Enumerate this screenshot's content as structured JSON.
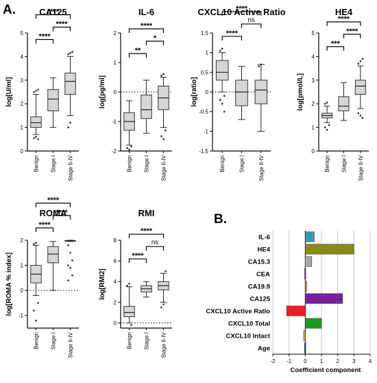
{
  "labels": {
    "panel_a": "A.",
    "panel_b": "B."
  },
  "chart_data": [
    {
      "type": "box",
      "title": "CA125",
      "ylabel": "log[U/ml]",
      "ylim": [
        0,
        5
      ],
      "yticks": [
        0,
        1,
        2,
        3,
        4,
        5
      ],
      "categories": [
        "Benign",
        "Stage I",
        "Stage II-IV"
      ],
      "boxes": [
        {
          "whisker_low": 0.7,
          "q1": 1.0,
          "median": 1.2,
          "q3": 1.45,
          "whisker_high": 2.4,
          "outliers": [
            2.5,
            2.55,
            2.6,
            0.55,
            0.6,
            0.5
          ]
        },
        {
          "whisker_low": 1.0,
          "q1": 1.7,
          "median": 2.2,
          "q3": 2.6,
          "whisker_high": 3.1,
          "outliers": []
        },
        {
          "whisker_low": 1.5,
          "q1": 2.4,
          "median": 2.95,
          "q3": 3.3,
          "whisker_high": 4.0,
          "outliers": [
            4.1,
            4.15,
            4.2,
            1.0,
            1.2
          ]
        }
      ],
      "comparisons": [
        {
          "from": 0,
          "to": 1,
          "label": "****"
        },
        {
          "from": 1,
          "to": 2,
          "label": "****"
        },
        {
          "from": 0,
          "to": 2,
          "label": "****"
        }
      ]
    },
    {
      "type": "box",
      "title": "IL-6",
      "ylabel": "log[pg/ml]",
      "ylim": [
        -2,
        2
      ],
      "yticks": [
        -2,
        -1,
        0,
        1,
        2
      ],
      "zero_line": true,
      "categories": [
        "Benign",
        "Stage I",
        "Stage II-IV"
      ],
      "boxes": [
        {
          "whisker_low": -1.8,
          "q1": -1.3,
          "median": -1.0,
          "q3": -0.7,
          "whisker_high": -0.3,
          "outliers": [
            -1.9,
            -1.95,
            -1.85
          ]
        },
        {
          "whisker_low": -1.4,
          "q1": -0.9,
          "median": -0.6,
          "q3": -0.1,
          "whisker_high": 0.4,
          "outliers": []
        },
        {
          "whisker_low": -1.2,
          "q1": -0.6,
          "median": -0.2,
          "q3": 0.2,
          "whisker_high": 0.5,
          "outliers": [
            0.55,
            0.6,
            -1.3,
            -1.5,
            -1.6
          ]
        }
      ],
      "comparisons": [
        {
          "from": 0,
          "to": 1,
          "label": "**"
        },
        {
          "from": 1,
          "to": 2,
          "label": "*"
        },
        {
          "from": 0,
          "to": 2,
          "label": "****"
        }
      ]
    },
    {
      "type": "box",
      "title": "CXCL10 Active Ratio",
      "ylabel": "log[ratio]",
      "ylim": [
        -1.5,
        1.5
      ],
      "yticks": [
        -1.5,
        -1.0,
        -0.5,
        0.0,
        0.5,
        1.0,
        1.5
      ],
      "zero_line": true,
      "categories": [
        "Benign",
        "Stage I",
        "Stage II-IV"
      ],
      "boxes": [
        {
          "whisker_low": 0.0,
          "q1": 0.3,
          "median": 0.5,
          "q3": 0.8,
          "whisker_high": 1.0,
          "outliers": [
            1.05,
            1.1,
            -0.1,
            -0.2,
            -0.3,
            -0.5
          ]
        },
        {
          "whisker_low": -0.7,
          "q1": -0.35,
          "median": 0.0,
          "q3": 0.3,
          "whisker_high": 0.65,
          "outliers": []
        },
        {
          "whisker_low": -1.0,
          "q1": -0.3,
          "median": 0.05,
          "q3": 0.3,
          "whisker_high": 0.7,
          "outliers": [
            0.65,
            0.7
          ]
        }
      ],
      "comparisons": [
        {
          "from": 0,
          "to": 1,
          "label": "****"
        },
        {
          "from": 1,
          "to": 2,
          "label": "ns"
        },
        {
          "from": 0,
          "to": 2,
          "label": "****"
        }
      ]
    },
    {
      "type": "box",
      "title": "HE4",
      "ylabel": "log[pmol/L]",
      "ylim": [
        0,
        5
      ],
      "yticks": [
        0,
        1,
        2,
        3,
        4,
        5
      ],
      "categories": [
        "Benign",
        "Stage I",
        "Stage II-IV"
      ],
      "boxes": [
        {
          "whisker_low": 1.2,
          "q1": 1.4,
          "median": 1.5,
          "q3": 1.6,
          "whisker_high": 1.9,
          "outliers": [
            2.0,
            2.05,
            1.1,
            1.0,
            0.9
          ]
        },
        {
          "whisker_low": 1.3,
          "q1": 1.7,
          "median": 1.9,
          "q3": 2.3,
          "whisker_high": 2.9,
          "outliers": []
        },
        {
          "whisker_low": 1.8,
          "q1": 2.4,
          "median": 2.75,
          "q3": 3.0,
          "whisker_high": 3.6,
          "outliers": [
            3.7,
            3.8,
            3.9,
            1.6,
            1.5,
            1.4
          ]
        }
      ],
      "comparisons": [
        {
          "from": 0,
          "to": 1,
          "label": "***"
        },
        {
          "from": 1,
          "to": 2,
          "label": "****"
        },
        {
          "from": 0,
          "to": 2,
          "label": "****"
        }
      ]
    },
    {
      "type": "box",
      "title": "ROMA",
      "ylabel": "log[ROMA % index]",
      "ylim": [
        -1.5,
        2
      ],
      "yticks": [
        -1,
        0,
        1,
        2
      ],
      "zero_line": true,
      "categories": [
        "Benign",
        "Stage I",
        "Stage II-IV"
      ],
      "boxes": [
        {
          "whisker_low": -0.2,
          "q1": 0.3,
          "median": 0.65,
          "q3": 1.0,
          "whisker_high": 1.8,
          "outliers": [
            1.85,
            1.9,
            -0.5,
            -0.8,
            -1.2
          ]
        },
        {
          "whisker_low": 0.0,
          "q1": 1.1,
          "median": 1.45,
          "q3": 1.75,
          "whisker_high": 1.95,
          "outliers": []
        },
        {
          "whisker_low": 1.95,
          "q1": 1.97,
          "median": 1.98,
          "q3": 1.99,
          "whisker_high": 2.0,
          "outliers": [
            1.8,
            1.5,
            1.2,
            1.0,
            0.9,
            0.6,
            0.4
          ]
        }
      ],
      "comparisons": [
        {
          "from": 0,
          "to": 1,
          "label": "****"
        },
        {
          "from": 1,
          "to": 2,
          "label": "****"
        },
        {
          "from": 0,
          "to": 2,
          "label": "****"
        }
      ]
    },
    {
      "type": "box",
      "title": "RMI",
      "ylabel": "log[RMI2]",
      "ylim": [
        -0.5,
        8
      ],
      "yticks": [
        0,
        2,
        4,
        6,
        8
      ],
      "zero_line": true,
      "categories": [
        "Benign",
        "Stage I",
        "Stage II-IV"
      ],
      "boxes": [
        {
          "whisker_low": 0.0,
          "q1": 0.6,
          "median": 1.0,
          "q3": 1.6,
          "whisker_high": 3.5,
          "outliers": [
            3.6,
            3.8,
            -0.2
          ]
        },
        {
          "whisker_low": 2.5,
          "q1": 3.0,
          "median": 3.3,
          "q3": 3.6,
          "whisker_high": 4.0,
          "outliers": []
        },
        {
          "whisker_low": 2.0,
          "q1": 3.2,
          "median": 3.6,
          "q3": 4.0,
          "whisker_high": 4.8,
          "outliers": [
            1.5,
            1.8,
            5.0
          ]
        }
      ],
      "comparisons": [
        {
          "from": 0,
          "to": 1,
          "label": "****"
        },
        {
          "from": 1,
          "to": 2,
          "label": "ns"
        },
        {
          "from": 0,
          "to": 2,
          "label": "****"
        }
      ]
    },
    {
      "type": "bar",
      "orientation": "horizontal",
      "xlabel": "Coefficient component",
      "xlim": [
        -2,
        4
      ],
      "xticks": [
        -2,
        -1,
        0,
        1,
        2,
        3,
        4
      ],
      "grid": "vertical",
      "categories": [
        "IL-6",
        "HE4",
        "CA15.3",
        "CEA",
        "CA19.9",
        "CA125",
        "CXCL10 Active Ratio",
        "CXCL10 Total",
        "CXCL10 Intact",
        "Age"
      ],
      "values": [
        0.55,
        3.0,
        0.4,
        -0.05,
        0.05,
        2.3,
        -1.15,
        1.0,
        -0.1,
        -0.05
      ],
      "colors": [
        "#2f9dbf",
        "#8a8a14",
        "#a8a8a8",
        "#a24fb0",
        "#c08c50",
        "#7b1fa2",
        "#ee1c24",
        "#11a11b",
        "#f2a23c",
        "#2b3fc4"
      ]
    }
  ]
}
